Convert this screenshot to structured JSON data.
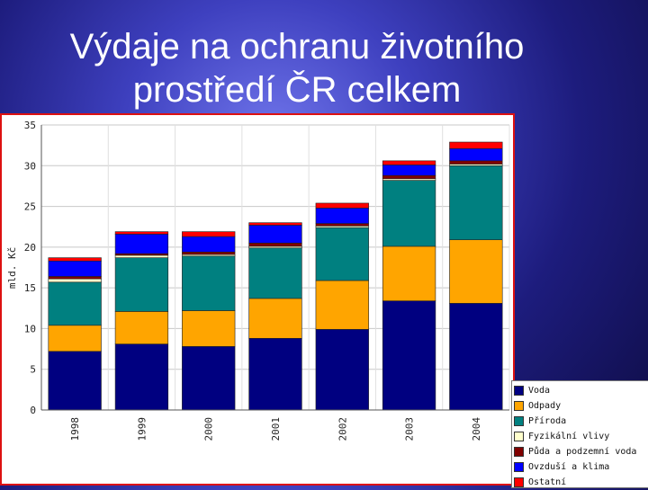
{
  "title": "Výdaje na ochranu životního prostředí ČR celkem",
  "colors": {
    "Voda": "#000080",
    "Odpady": "#ffa500",
    "Příroda": "#008080",
    "Fyzikální vlivy": "#ffffcc",
    "Půda a podzemní voda": "#800000",
    "Ovzduší a klima": "#0000ff",
    "Ostatní": "#ff0000"
  },
  "chart_data": {
    "type": "bar",
    "stacked": true,
    "title": "Výdaje na ochranu životního prostředí ČR celkem",
    "xlabel": "",
    "ylabel": "mld. Kč",
    "ylim": [
      0,
      35
    ],
    "yticks": [
      0,
      5,
      10,
      15,
      20,
      25,
      30,
      35
    ],
    "grid": true,
    "legend": "bottom-right",
    "categories": [
      "1998",
      "1999",
      "2000",
      "2001",
      "2002",
      "2003",
      "2004"
    ],
    "series": [
      {
        "name": "Voda",
        "values": [
          7.2,
          8.1,
          7.8,
          8.8,
          9.9,
          13.4,
          13.1
        ]
      },
      {
        "name": "Odpady",
        "values": [
          3.2,
          4.0,
          4.4,
          4.9,
          6.0,
          6.7,
          7.8
        ]
      },
      {
        "name": "Příroda",
        "values": [
          5.3,
          6.6,
          6.7,
          6.2,
          6.5,
          8.1,
          9.1
        ]
      },
      {
        "name": "Fyzikální vlivy",
        "values": [
          0.4,
          0.3,
          0.2,
          0.2,
          0.2,
          0.2,
          0.2
        ]
      },
      {
        "name": "Půda a podzemní voda",
        "values": [
          0.3,
          0.2,
          0.3,
          0.4,
          0.3,
          0.4,
          0.4
        ]
      },
      {
        "name": "Ovzduší a klima",
        "values": [
          1.9,
          2.4,
          1.9,
          2.2,
          1.9,
          1.3,
          1.5
        ]
      },
      {
        "name": "Ostatní",
        "values": [
          0.4,
          0.3,
          0.6,
          0.3,
          0.6,
          0.5,
          0.8
        ]
      }
    ]
  }
}
